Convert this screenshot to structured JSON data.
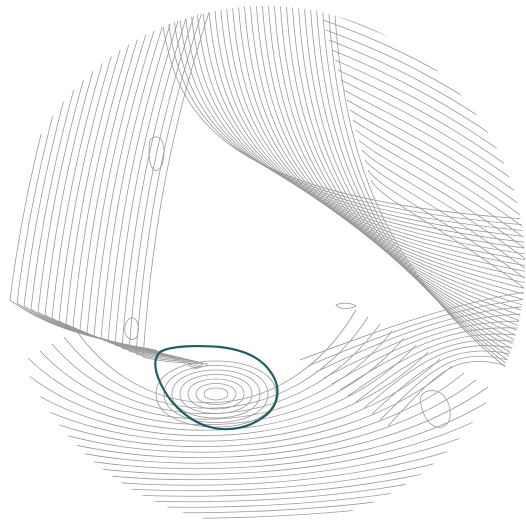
{
  "map": {
    "type": "contour-map",
    "frame_shape": "circle",
    "background_color": "#ffffff",
    "contour_color": "#9a9a9a",
    "highlight_color": "#1f5f63",
    "labels": []
  }
}
